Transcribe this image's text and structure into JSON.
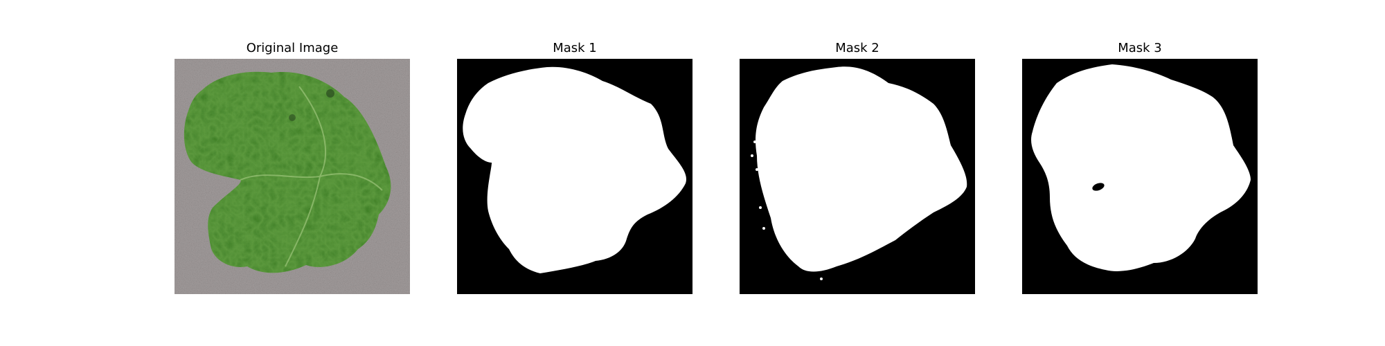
{
  "figure": {
    "panels": [
      {
        "title": "Original Image",
        "kind": "photo",
        "subject": "leaf"
      },
      {
        "title": "Mask 1",
        "kind": "binary-mask",
        "foreground": "#ffffff",
        "background": "#000000"
      },
      {
        "title": "Mask 2",
        "kind": "binary-mask",
        "foreground": "#ffffff",
        "background": "#000000"
      },
      {
        "title": "Mask 3",
        "kind": "binary-mask",
        "foreground": "#ffffff",
        "background": "#000000"
      }
    ]
  },
  "colors": {
    "leaf_dark": "#3f7a2e",
    "leaf_mid": "#5d9a3e",
    "leaf_light": "#9cc47a",
    "ground": "#a39d9d"
  }
}
